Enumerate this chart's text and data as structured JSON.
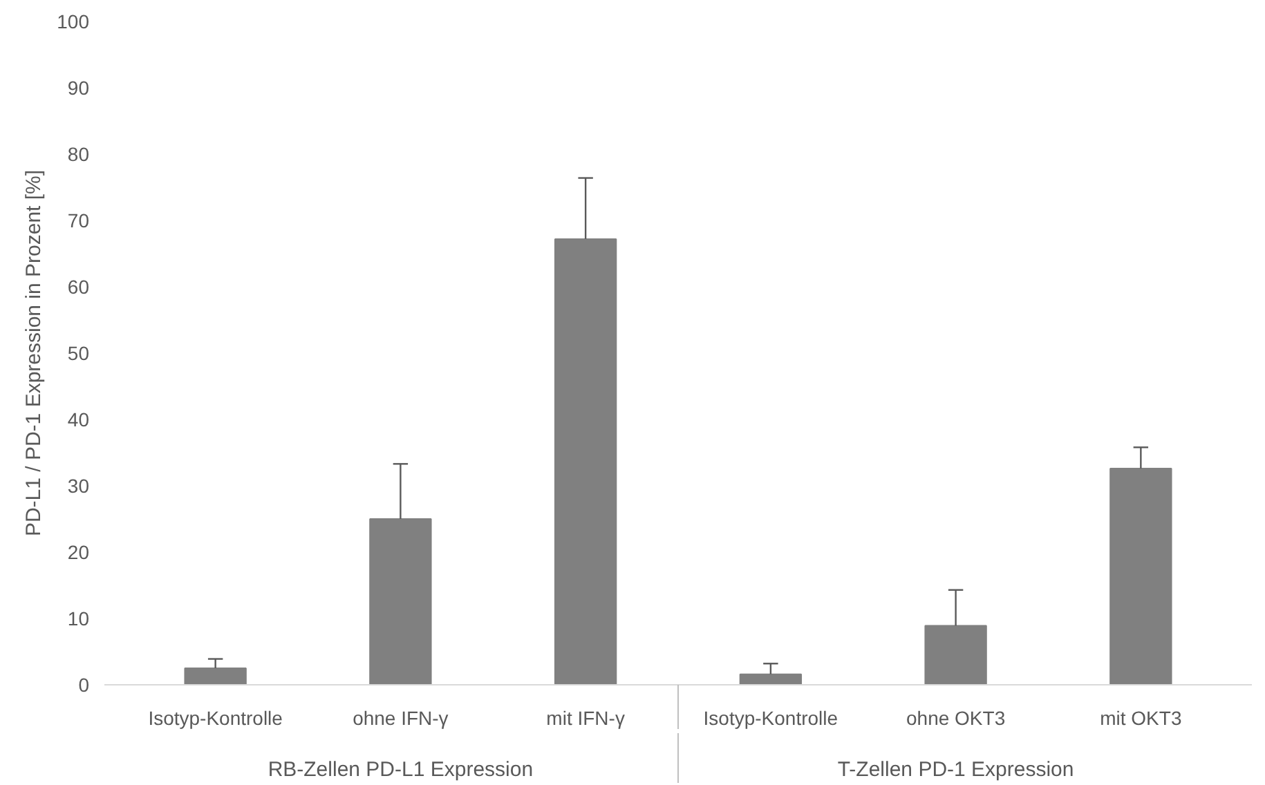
{
  "chart_data": {
    "type": "bar",
    "ylabel": "PD-L1 / PD-1 Expression in Prozent [%]",
    "categories": [
      "Isotyp-Kontrolle",
      "ohne IFN-γ",
      "mit IFN-γ",
      "Isotyp-Kontrolle",
      "ohne OKT3",
      "mit OKT3"
    ],
    "values": [
      2.5,
      25.0,
      67.2,
      1.6,
      8.9,
      32.6
    ],
    "errors": [
      [
        2.5,
        3.9
      ],
      [
        25.0,
        33.3
      ],
      [
        67.2,
        76.4
      ],
      [
        1.6,
        3.2
      ],
      [
        8.9,
        14.3
      ],
      [
        32.6,
        35.8
      ]
    ],
    "color": "#808080",
    "ylim": [
      0,
      100
    ],
    "yticks": [
      0,
      10,
      20,
      30,
      40,
      50,
      60,
      70,
      80,
      90,
      100
    ],
    "grid": false,
    "annotations": [
      "RB-Zellen PD-L1 Expression",
      "T-Zellen PD-1 Expression"
    ]
  }
}
